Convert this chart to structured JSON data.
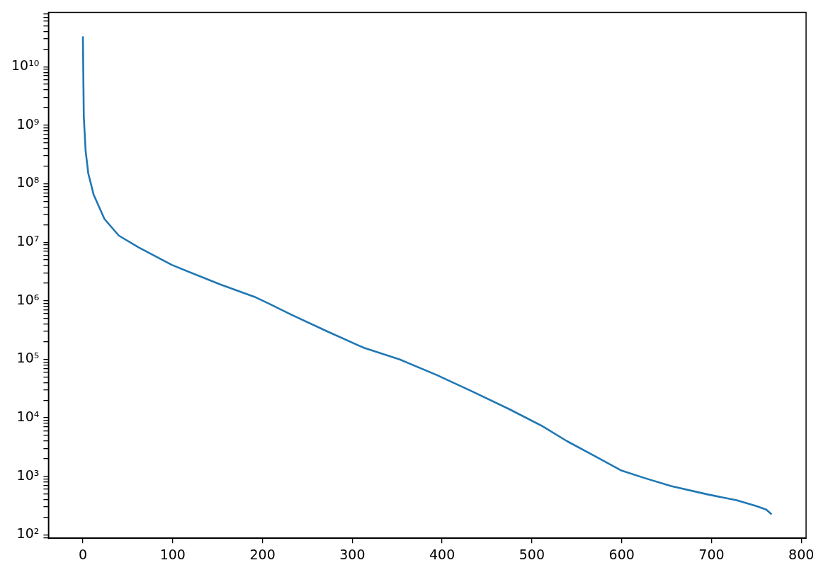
{
  "chart_data": {
    "type": "line",
    "log": "y",
    "grid": false,
    "legend": false,
    "marker": "none",
    "line_style": "solid",
    "xlim": [
      -38.35,
      805.35
    ],
    "xticks": [
      0,
      100,
      200,
      300,
      400,
      500,
      600,
      700,
      800
    ],
    "ylim": [
      87.5,
      85000000000
    ],
    "yticks": [
      {
        "value": 90,
        "label": null
      },
      {
        "value": 100,
        "label": "10²"
      },
      {
        "value": 200,
        "label": null
      },
      {
        "value": 300,
        "label": null
      },
      {
        "value": 400,
        "label": null
      },
      {
        "value": 500,
        "label": null
      },
      {
        "value": 600,
        "label": null
      },
      {
        "value": 700,
        "label": null
      },
      {
        "value": 800,
        "label": null
      },
      {
        "value": 900,
        "label": null
      },
      {
        "value": 1000,
        "label": "10³"
      },
      {
        "value": 2000,
        "label": null
      },
      {
        "value": 3000,
        "label": null
      },
      {
        "value": 4000,
        "label": null
      },
      {
        "value": 5000,
        "label": null
      },
      {
        "value": 6000,
        "label": null
      },
      {
        "value": 7000,
        "label": null
      },
      {
        "value": 8000,
        "label": null
      },
      {
        "value": 9000,
        "label": null
      },
      {
        "value": 10000,
        "label": "10⁴"
      },
      {
        "value": 20000,
        "label": null
      },
      {
        "value": 30000,
        "label": null
      },
      {
        "value": 40000,
        "label": null
      },
      {
        "value": 50000,
        "label": null
      },
      {
        "value": 60000,
        "label": null
      },
      {
        "value": 70000,
        "label": null
      },
      {
        "value": 80000,
        "label": null
      },
      {
        "value": 90000,
        "label": null
      },
      {
        "value": 100000,
        "label": "10⁵"
      },
      {
        "value": 200000,
        "label": null
      },
      {
        "value": 300000,
        "label": null
      },
      {
        "value": 400000,
        "label": null
      },
      {
        "value": 500000,
        "label": null
      },
      {
        "value": 600000,
        "label": null
      },
      {
        "value": 700000,
        "label": null
      },
      {
        "value": 800000,
        "label": null
      },
      {
        "value": 900000,
        "label": null
      },
      {
        "value": 1000000,
        "label": "10⁶"
      },
      {
        "value": 2000000,
        "label": null
      },
      {
        "value": 3000000,
        "label": null
      },
      {
        "value": 4000000,
        "label": null
      },
      {
        "value": 5000000,
        "label": null
      },
      {
        "value": 6000000,
        "label": null
      },
      {
        "value": 7000000,
        "label": null
      },
      {
        "value": 8000000,
        "label": null
      },
      {
        "value": 9000000,
        "label": null
      },
      {
        "value": 10000000,
        "label": "10⁷"
      },
      {
        "value": 20000000,
        "label": null
      },
      {
        "value": 30000000,
        "label": null
      },
      {
        "value": 40000000,
        "label": null
      },
      {
        "value": 50000000,
        "label": null
      },
      {
        "value": 60000000,
        "label": null
      },
      {
        "value": 70000000,
        "label": null
      },
      {
        "value": 80000000,
        "label": null
      },
      {
        "value": 90000000,
        "label": null
      },
      {
        "value": 100000000,
        "label": "10⁸"
      },
      {
        "value": 200000000,
        "label": null
      },
      {
        "value": 300000000,
        "label": null
      },
      {
        "value": 400000000,
        "label": null
      },
      {
        "value": 500000000,
        "label": null
      },
      {
        "value": 600000000,
        "label": null
      },
      {
        "value": 700000000,
        "label": null
      },
      {
        "value": 800000000,
        "label": null
      },
      {
        "value": 900000000,
        "label": null
      },
      {
        "value": 1000000000,
        "label": "10⁹"
      },
      {
        "value": 2000000000,
        "label": null
      },
      {
        "value": 3000000000,
        "label": null
      },
      {
        "value": 4000000000,
        "label": null
      },
      {
        "value": 5000000000,
        "label": null
      },
      {
        "value": 6000000000,
        "label": null
      },
      {
        "value": 7000000000,
        "label": null
      },
      {
        "value": 8000000000,
        "label": null
      },
      {
        "value": 9000000000,
        "label": null
      },
      {
        "value": 10000000000,
        "label": "10¹⁰"
      },
      {
        "value": 20000000000,
        "label": null
      },
      {
        "value": 30000000000,
        "label": null
      },
      {
        "value": 40000000000,
        "label": null
      },
      {
        "value": 50000000000,
        "label": null
      },
      {
        "value": 60000000000,
        "label": null
      },
      {
        "value": 70000000000,
        "label": null
      },
      {
        "value": 80000000000,
        "label": null
      }
    ],
    "series": [
      {
        "color": "#1f77b4",
        "x": [
          0,
          1,
          3,
          6,
          12,
          24,
          40,
          62,
          99,
          153,
          191,
          208,
          232,
          272,
          313,
          353,
          394,
          434,
          475,
          511,
          539,
          566,
          599,
          626,
          655,
          696,
          728,
          750,
          761,
          767
        ],
        "values": [
          33000000000,
          1400000000,
          370000000,
          150000000,
          65000000,
          25000000,
          13000000,
          8200000,
          4100000,
          1900000,
          1170000,
          880000,
          580000,
          300000,
          157000,
          99000,
          54000,
          28000,
          14000,
          7300,
          4000,
          2400,
          1270,
          930,
          680,
          490,
          390,
          310,
          270,
          224
        ]
      }
    ]
  }
}
